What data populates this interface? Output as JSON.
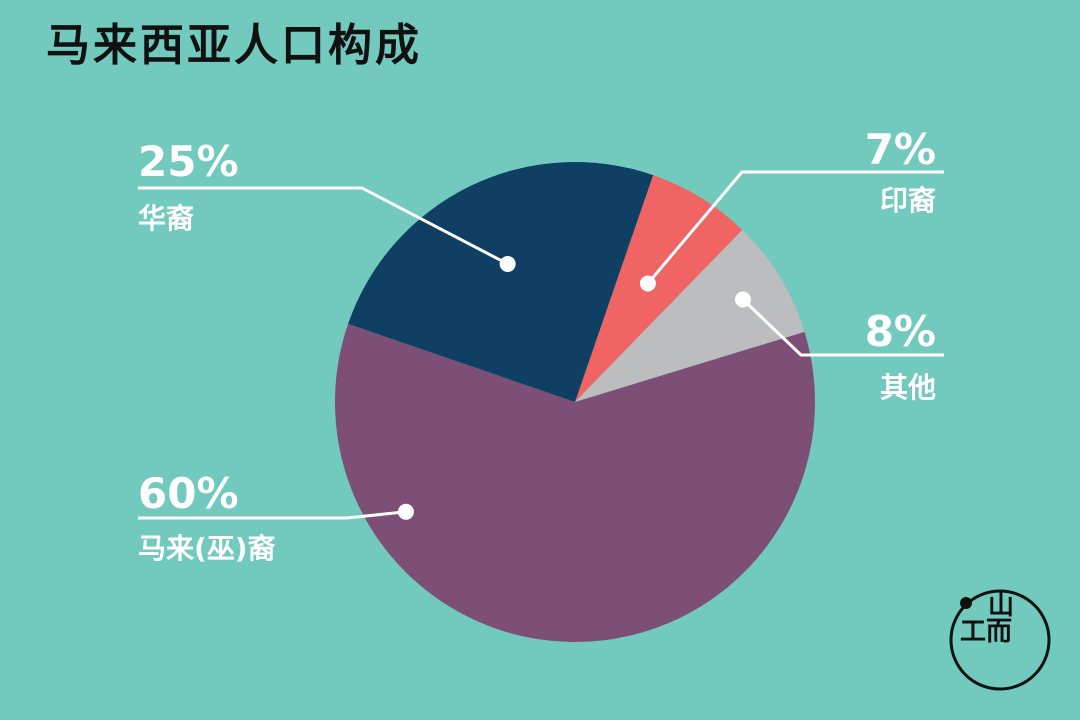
{
  "title": "马来西亚人口构成",
  "colors": {
    "background": "#72c9bd",
    "text": "#ffffff",
    "title": "#111111"
  },
  "chart_data": {
    "type": "pie",
    "title": "马来西亚人口构成",
    "unit": "%",
    "slices": [
      {
        "label": "印裔",
        "value": 7,
        "display": "7%",
        "color": "#f06463"
      },
      {
        "label": "其他",
        "value": 8,
        "display": "8%",
        "color": "#bcbdbf"
      },
      {
        "label": "马来(巫)裔",
        "value": 60,
        "display": "60%",
        "color": "#7d4f76"
      },
      {
        "label": "华裔",
        "value": 25,
        "display": "25%",
        "color": "#0f4064"
      }
    ]
  },
  "logo": {
    "top_text": "山",
    "bottom_text": "工而"
  }
}
